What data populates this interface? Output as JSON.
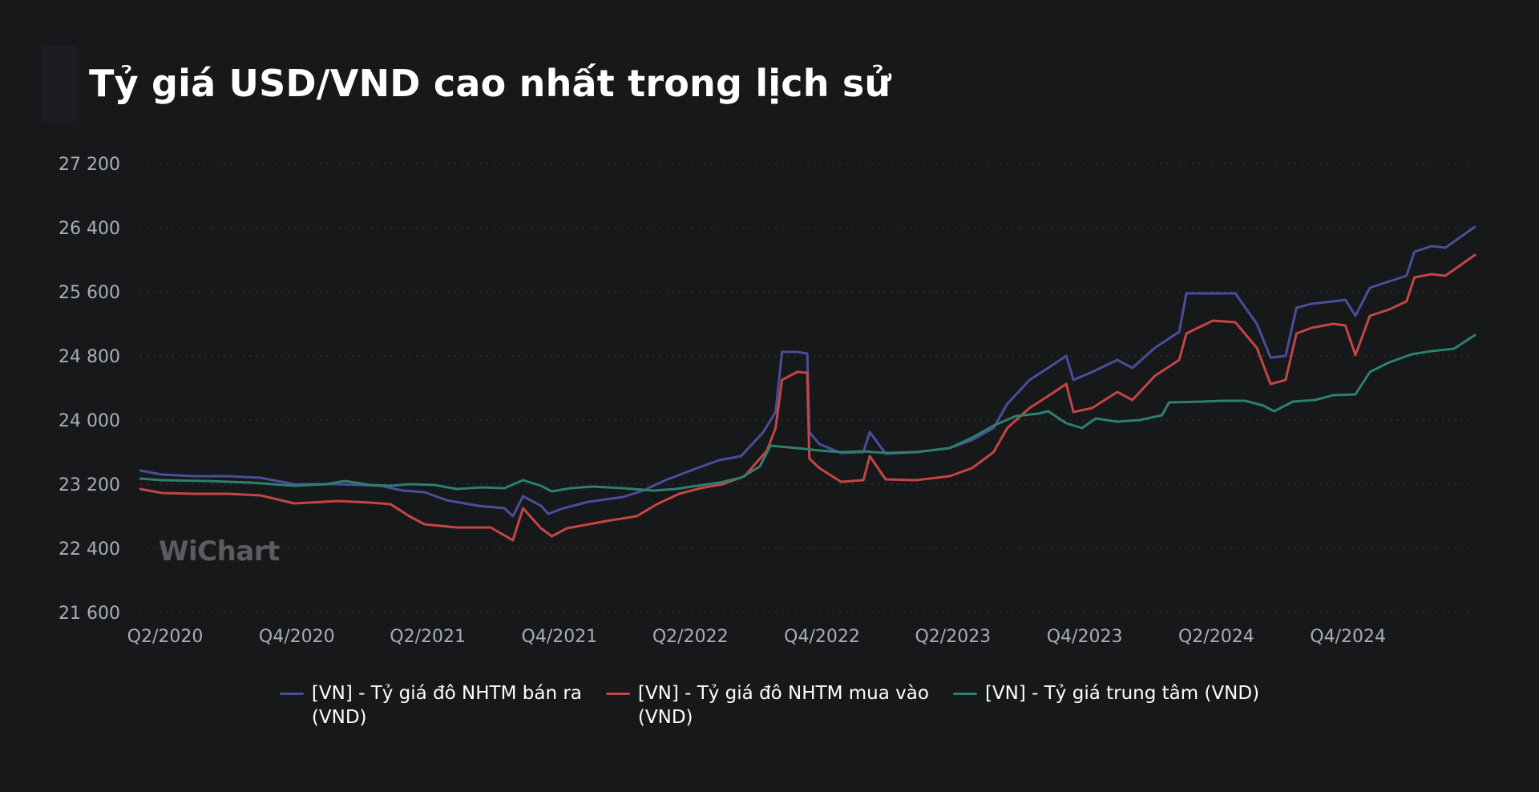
{
  "header": {
    "title": "Tỷ giá USD/VND cao nhất trong lịch sử"
  },
  "watermark": "WiChart",
  "colors": {
    "background": "#17181a",
    "grid": "#3a3d44",
    "axis_text": "#a8adb8"
  },
  "chart_data": {
    "type": "line",
    "title": "Tỷ giá USD/VND cao nhất trong lịch sử",
    "xlabel": "",
    "ylabel": "",
    "x_range": [
      "2020-04-01",
      "2025-04-30"
    ],
    "x_tick_labels": [
      "Q2/2020",
      "Q4/2020",
      "Q2/2021",
      "Q4/2021",
      "Q2/2022",
      "Q4/2022",
      "Q2/2023",
      "Q4/2023",
      "Q2/2024",
      "Q4/2024"
    ],
    "x_tick_dates": [
      "2020-04-01",
      "2020-10-01",
      "2021-04-01",
      "2021-10-01",
      "2022-04-01",
      "2022-10-01",
      "2023-04-01",
      "2023-10-01",
      "2024-04-01",
      "2024-10-01"
    ],
    "y_ticks": [
      21600,
      22400,
      23200,
      24000,
      24800,
      25600,
      26400,
      27200
    ],
    "y_tick_labels": [
      "21 600",
      "22 400",
      "23 200",
      "24 000",
      "24 800",
      "25 600",
      "26 400",
      "27 200"
    ],
    "ylim": [
      21600,
      27200
    ],
    "grid": true,
    "legend_position": "bottom",
    "series": [
      {
        "name": "[VN] - Tỷ giá đô NHTM bán ra\n(VND)",
        "color": "#4a4e9a",
        "points": [
          [
            "2020-04-01",
            23370
          ],
          [
            "2020-05-01",
            23320
          ],
          [
            "2020-06-15",
            23300
          ],
          [
            "2020-08-01",
            23300
          ],
          [
            "2020-09-15",
            23280
          ],
          [
            "2020-11-01",
            23200
          ],
          [
            "2021-01-01",
            23200
          ],
          [
            "2021-03-01",
            23180
          ],
          [
            "2021-04-01",
            23120
          ],
          [
            "2021-05-01",
            23100
          ],
          [
            "2021-06-01",
            23000
          ],
          [
            "2021-07-15",
            22930
          ],
          [
            "2021-08-20",
            22900
          ],
          [
            "2021-09-01",
            22800
          ],
          [
            "2021-09-15",
            23050
          ],
          [
            "2021-10-10",
            22930
          ],
          [
            "2021-10-20",
            22830
          ],
          [
            "2021-11-10",
            22900
          ],
          [
            "2021-12-15",
            22980
          ],
          [
            "2022-02-01",
            23040
          ],
          [
            "2022-03-01",
            23120
          ],
          [
            "2022-04-01",
            23250
          ],
          [
            "2022-05-15",
            23400
          ],
          [
            "2022-06-15",
            23500
          ],
          [
            "2022-07-15",
            23550
          ],
          [
            "2022-08-15",
            23850
          ],
          [
            "2022-09-01",
            24100
          ],
          [
            "2022-09-10",
            24850
          ],
          [
            "2022-10-01",
            24850
          ],
          [
            "2022-10-15",
            24830
          ],
          [
            "2022-10-18",
            23850
          ],
          [
            "2022-11-01",
            23700
          ],
          [
            "2022-12-01",
            23590
          ],
          [
            "2023-01-01",
            23600
          ],
          [
            "2023-01-10",
            23850
          ],
          [
            "2023-02-01",
            23580
          ],
          [
            "2023-03-15",
            23600
          ],
          [
            "2023-05-01",
            23650
          ],
          [
            "2023-06-01",
            23750
          ],
          [
            "2023-07-01",
            23900
          ],
          [
            "2023-07-20",
            24200
          ],
          [
            "2023-08-20",
            24500
          ],
          [
            "2023-09-15",
            24650
          ],
          [
            "2023-10-10",
            24800
          ],
          [
            "2023-10-20",
            24500
          ],
          [
            "2023-11-15",
            24600
          ],
          [
            "2023-12-20",
            24750
          ],
          [
            "2024-01-10",
            24650
          ],
          [
            "2024-02-10",
            24900
          ],
          [
            "2024-03-15",
            25100
          ],
          [
            "2024-03-25",
            25580
          ],
          [
            "2024-05-01",
            25580
          ],
          [
            "2024-06-01",
            25580
          ],
          [
            "2024-07-01",
            25200
          ],
          [
            "2024-07-20",
            24780
          ],
          [
            "2024-08-10",
            24800
          ],
          [
            "2024-08-25",
            25400
          ],
          [
            "2024-09-15",
            25450
          ],
          [
            "2024-10-15",
            25480
          ],
          [
            "2024-11-01",
            25500
          ],
          [
            "2024-11-15",
            25300
          ],
          [
            "2024-12-05",
            25650
          ],
          [
            "2025-01-01",
            25730
          ],
          [
            "2025-01-25",
            25800
          ],
          [
            "2025-02-05",
            26100
          ],
          [
            "2025-03-01",
            26170
          ],
          [
            "2025-03-20",
            26150
          ],
          [
            "2025-04-30",
            26410
          ]
        ]
      },
      {
        "name": "[VN] - Tỷ giá đô NHTM mua vào\n(VND)",
        "color": "#c44545",
        "points": [
          [
            "2020-04-01",
            23140
          ],
          [
            "2020-05-01",
            23090
          ],
          [
            "2020-06-15",
            23080
          ],
          [
            "2020-08-01",
            23080
          ],
          [
            "2020-09-15",
            23060
          ],
          [
            "2020-11-01",
            22960
          ],
          [
            "2021-01-01",
            22990
          ],
          [
            "2021-02-15",
            22970
          ],
          [
            "2021-03-15",
            22950
          ],
          [
            "2021-04-10",
            22800
          ],
          [
            "2021-05-01",
            22700
          ],
          [
            "2021-06-15",
            22660
          ],
          [
            "2021-08-01",
            22660
          ],
          [
            "2021-09-01",
            22500
          ],
          [
            "2021-09-15",
            22900
          ],
          [
            "2021-10-10",
            22650
          ],
          [
            "2021-10-25",
            22550
          ],
          [
            "2021-11-15",
            22650
          ],
          [
            "2022-01-15",
            22750
          ],
          [
            "2022-02-20",
            22800
          ],
          [
            "2022-03-20",
            22950
          ],
          [
            "2022-04-20",
            23080
          ],
          [
            "2022-05-20",
            23150
          ],
          [
            "2022-06-20",
            23200
          ],
          [
            "2022-07-20",
            23300
          ],
          [
            "2022-08-20",
            23620
          ],
          [
            "2022-09-01",
            23900
          ],
          [
            "2022-09-10",
            24500
          ],
          [
            "2022-10-01",
            24600
          ],
          [
            "2022-10-15",
            24590
          ],
          [
            "2022-10-18",
            23520
          ],
          [
            "2022-11-01",
            23400
          ],
          [
            "2022-12-01",
            23230
          ],
          [
            "2023-01-01",
            23250
          ],
          [
            "2023-01-10",
            23550
          ],
          [
            "2023-02-01",
            23260
          ],
          [
            "2023-03-15",
            23250
          ],
          [
            "2023-05-01",
            23300
          ],
          [
            "2023-06-01",
            23400
          ],
          [
            "2023-07-01",
            23600
          ],
          [
            "2023-07-20",
            23900
          ],
          [
            "2023-08-20",
            24150
          ],
          [
            "2023-09-15",
            24300
          ],
          [
            "2023-10-10",
            24450
          ],
          [
            "2023-10-20",
            24100
          ],
          [
            "2023-11-15",
            24150
          ],
          [
            "2023-12-20",
            24350
          ],
          [
            "2024-01-10",
            24250
          ],
          [
            "2024-02-10",
            24550
          ],
          [
            "2024-03-15",
            24750
          ],
          [
            "2024-03-25",
            25080
          ],
          [
            "2024-05-01",
            25240
          ],
          [
            "2024-06-01",
            25220
          ],
          [
            "2024-07-01",
            24900
          ],
          [
            "2024-07-20",
            24450
          ],
          [
            "2024-08-10",
            24500
          ],
          [
            "2024-08-25",
            25080
          ],
          [
            "2024-09-15",
            25150
          ],
          [
            "2024-10-15",
            25200
          ],
          [
            "2024-11-01",
            25180
          ],
          [
            "2024-11-15",
            24810
          ],
          [
            "2024-12-05",
            25300
          ],
          [
            "2025-01-01",
            25380
          ],
          [
            "2025-01-25",
            25480
          ],
          [
            "2025-02-05",
            25780
          ],
          [
            "2025-03-01",
            25820
          ],
          [
            "2025-03-20",
            25800
          ],
          [
            "2025-04-30",
            26060
          ]
        ]
      },
      {
        "name": "[VN] - Tỷ giá trung tâm (VND)",
        "color": "#2e7f6e",
        "points": [
          [
            "2020-04-01",
            23270
          ],
          [
            "2020-05-01",
            23250
          ],
          [
            "2020-07-01",
            23240
          ],
          [
            "2020-09-01",
            23220
          ],
          [
            "2020-11-01",
            23180
          ],
          [
            "2020-12-15",
            23200
          ],
          [
            "2021-01-10",
            23240
          ],
          [
            "2021-02-15",
            23190
          ],
          [
            "2021-03-15",
            23180
          ],
          [
            "2021-04-10",
            23200
          ],
          [
            "2021-05-15",
            23190
          ],
          [
            "2021-06-15",
            23140
          ],
          [
            "2021-07-20",
            23160
          ],
          [
            "2021-08-20",
            23150
          ],
          [
            "2021-09-15",
            23250
          ],
          [
            "2021-10-10",
            23180
          ],
          [
            "2021-10-25",
            23110
          ],
          [
            "2021-11-20",
            23150
          ],
          [
            "2021-12-20",
            23170
          ],
          [
            "2022-02-01",
            23150
          ],
          [
            "2022-03-15",
            23120
          ],
          [
            "2022-04-15",
            23140
          ],
          [
            "2022-05-15",
            23180
          ],
          [
            "2022-06-15",
            23220
          ],
          [
            "2022-07-15",
            23280
          ],
          [
            "2022-08-10",
            23420
          ],
          [
            "2022-08-25",
            23680
          ],
          [
            "2022-10-01",
            23650
          ],
          [
            "2022-11-01",
            23620
          ],
          [
            "2022-12-01",
            23600
          ],
          [
            "2023-01-01",
            23610
          ],
          [
            "2023-02-01",
            23590
          ],
          [
            "2023-03-15",
            23600
          ],
          [
            "2023-05-01",
            23650
          ],
          [
            "2023-06-01",
            23780
          ],
          [
            "2023-07-01",
            23930
          ],
          [
            "2023-08-01",
            24050
          ],
          [
            "2023-09-01",
            24080
          ],
          [
            "2023-09-15",
            24110
          ],
          [
            "2023-10-10",
            23960
          ],
          [
            "2023-11-01",
            23900
          ],
          [
            "2023-11-20",
            24020
          ],
          [
            "2023-12-20",
            23980
          ],
          [
            "2024-01-20",
            24000
          ],
          [
            "2024-02-20",
            24060
          ],
          [
            "2024-03-01",
            24220
          ],
          [
            "2024-04-15",
            24230
          ],
          [
            "2024-05-15",
            24240
          ],
          [
            "2024-06-15",
            24240
          ],
          [
            "2024-07-10",
            24180
          ],
          [
            "2024-07-25",
            24110
          ],
          [
            "2024-08-20",
            24230
          ],
          [
            "2024-09-20",
            24250
          ],
          [
            "2024-10-15",
            24310
          ],
          [
            "2024-11-15",
            24320
          ],
          [
            "2024-12-05",
            24600
          ],
          [
            "2025-01-01",
            24720
          ],
          [
            "2025-02-01",
            24820
          ],
          [
            "2025-03-01",
            24860
          ],
          [
            "2025-04-01",
            24890
          ],
          [
            "2025-04-30",
            25060
          ]
        ]
      }
    ]
  }
}
